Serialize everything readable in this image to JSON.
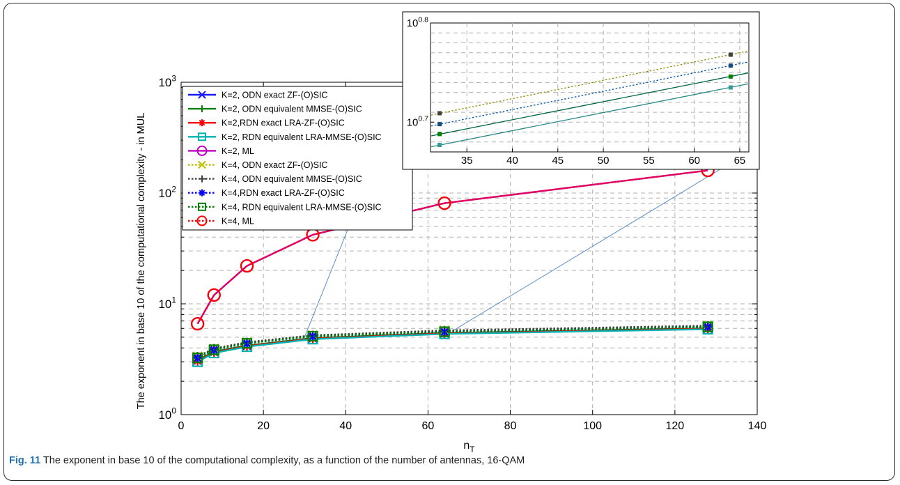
{
  "caption": {
    "label": "Fig. 11",
    "text": "The exponent in base 10 of the computational complexity, as a function of the number of antennas, 16-QAM"
  },
  "chart_data": {
    "type": "line",
    "title": "",
    "xlabel": "n_T",
    "ylabel": "The exponent in base 10 of the computational complexity - in MUL",
    "x_scale": "linear",
    "y_scale": "log",
    "xlim": [
      0,
      140
    ],
    "ylim": [
      1,
      1000
    ],
    "grid": true,
    "legend_position": "top-left",
    "x": [
      4,
      8,
      16,
      32,
      64,
      128
    ],
    "xticks": [
      "0",
      "20",
      "40",
      "60",
      "80",
      "100",
      "120",
      "140"
    ],
    "yticks": [
      {
        "base": "10",
        "exp": "0"
      },
      {
        "base": "10",
        "exp": "1"
      },
      {
        "base": "10",
        "exp": "2"
      },
      {
        "base": "10",
        "exp": "3"
      }
    ],
    "series": [
      {
        "name": "K=2, ODN exact ZF-(O)SIC",
        "color": "#1a1aff",
        "dash": "solid",
        "marker": "x",
        "values": [
          3.1,
          3.7,
          4.2,
          4.9,
          5.45,
          6.0
        ]
      },
      {
        "name": "K=2, ODN equivalent MMSE-(O)SIC",
        "color": "#008000",
        "dash": "solid",
        "marker": "plus",
        "values": [
          3.1,
          3.7,
          4.2,
          4.9,
          5.45,
          6.0
        ]
      },
      {
        "name": "K=2,RDN exact LRA-ZF-(O)SIC",
        "color": "#ff0000",
        "dash": "solid",
        "marker": "asterisk",
        "values": [
          3.05,
          3.65,
          4.15,
          4.85,
          5.4,
          5.95
        ]
      },
      {
        "name": "K=2, RDN equivalent LRA-MMSE-(O)SIC",
        "color": "#00b3b3",
        "dash": "solid",
        "marker": "square",
        "values": [
          3.0,
          3.6,
          4.1,
          4.8,
          5.35,
          5.9
        ]
      },
      {
        "name": "K=2, ML",
        "color": "#bf00bf",
        "dash": "solid",
        "marker": "circle",
        "values": [
          6.6,
          12.0,
          22.0,
          42.0,
          81.0,
          160.0
        ]
      },
      {
        "name": "K=4, ODN exact ZF-(O)SIC",
        "color": "#bfbf00",
        "dash": "dotted",
        "marker": "x",
        "values": [
          3.35,
          3.95,
          4.5,
          5.2,
          5.75,
          6.35
        ]
      },
      {
        "name": "K=4, ODN equivalent MMSE-(O)SIC",
        "color": "#404040",
        "dash": "dotted",
        "marker": "plus",
        "values": [
          3.35,
          3.95,
          4.5,
          5.2,
          5.75,
          6.35
        ]
      },
      {
        "name": "K=4,RDN exact LRA-ZF-(O)SIC",
        "color": "#0000ff",
        "dash": "dotted",
        "marker": "asterisk",
        "values": [
          3.25,
          3.85,
          4.4,
          5.1,
          5.6,
          6.2
        ]
      },
      {
        "name": "K=4, RDN equivalent LRA-MMSE-(O)SIC",
        "color": "#008000",
        "dash": "dotted",
        "marker": "square",
        "values": [
          3.25,
          3.85,
          4.4,
          5.1,
          5.6,
          6.2
        ]
      },
      {
        "name": "K=4, ML",
        "color": "#ff0000",
        "dash": "dotted",
        "marker": "circle",
        "values": [
          6.6,
          12.0,
          22.0,
          42.0,
          81.0,
          160.0
        ]
      }
    ],
    "inset": {
      "type": "line",
      "y_scale": "log",
      "xlim": [
        31,
        66
      ],
      "ylim_exponent": [
        0.67,
        0.8
      ],
      "xticks": [
        "35",
        "40",
        "45",
        "50",
        "55",
        "60",
        "65"
      ],
      "yticks": [
        {
          "base": "10",
          "exp": "0.7"
        },
        {
          "base": "10",
          "exp": "0.8"
        }
      ],
      "x": [
        32,
        64
      ],
      "lines": [
        {
          "color": "#8c8c00",
          "dash": "dotted",
          "marker_color": "#404040",
          "exponents": [
            0.709,
            0.768
          ]
        },
        {
          "color": "#0055aa",
          "dash": "dotted",
          "marker_color": "#1a4a7a",
          "exponents": [
            0.698,
            0.757
          ]
        },
        {
          "color": "#006644",
          "dash": "solid",
          "marker_color": "#008000",
          "exponents": [
            0.688,
            0.746
          ]
        },
        {
          "color": "#2a8a8a",
          "dash": "solid",
          "marker_color": "#3a9a9a",
          "exponents": [
            0.677,
            0.735
          ]
        }
      ]
    }
  }
}
